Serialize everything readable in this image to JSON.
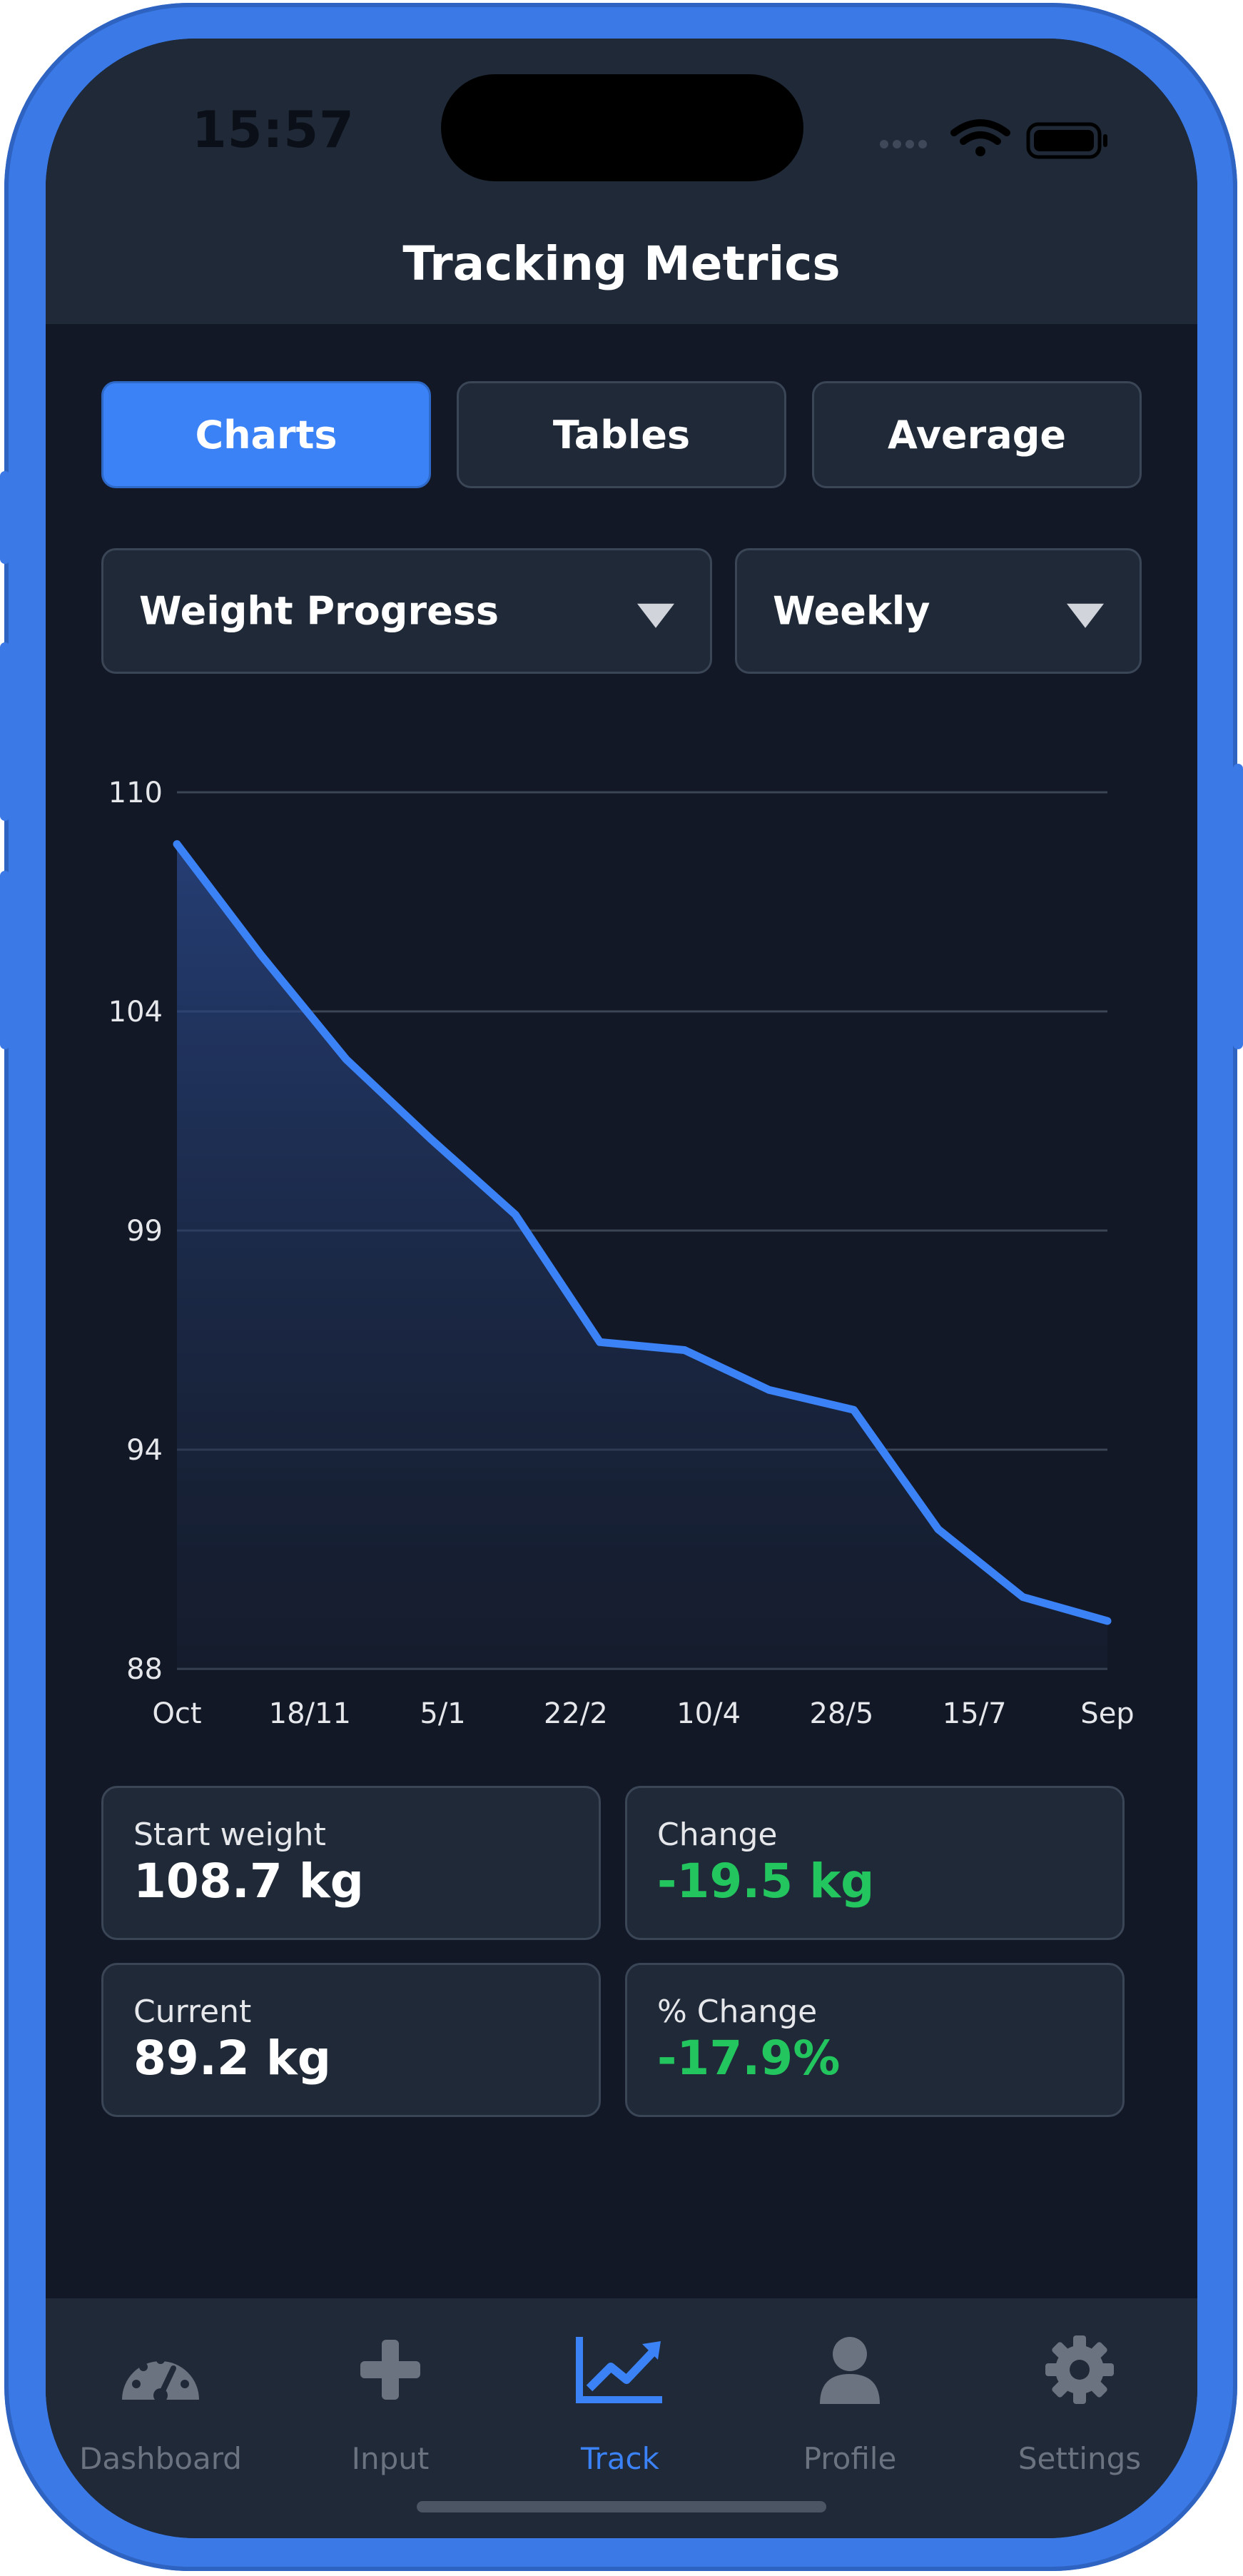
{
  "status_bar": {
    "time": "15:57"
  },
  "header": {
    "title": "Tracking Metrics"
  },
  "tabs": [
    {
      "label": "Charts",
      "active": true
    },
    {
      "label": "Tables",
      "active": false
    },
    {
      "label": "Average",
      "active": false
    }
  ],
  "filters": {
    "metric": {
      "selected": "Weight Progress"
    },
    "period": {
      "selected": "Weekly"
    }
  },
  "chart_data": {
    "type": "area",
    "title": "",
    "xlabel": "",
    "ylabel": "",
    "ylim": [
      88,
      110
    ],
    "y_ticks": [
      "110",
      "104",
      "99",
      "94",
      "88"
    ],
    "x_ticks": [
      "Oct",
      "18/11",
      "5/1",
      "22/2",
      "10/4",
      "28/5",
      "15/7",
      "Sep"
    ],
    "grid": true,
    "series": [
      {
        "values": [
          108.7,
          105.9,
          103.3,
          101.3,
          99.4,
          96.2,
          96.0,
          95.0,
          94.5,
          91.5,
          89.8,
          89.2
        ]
      }
    ],
    "color": "#3b82f6"
  },
  "stats": [
    {
      "label": "Start weight",
      "value": "108.7 kg",
      "highlight": false
    },
    {
      "label": "Change",
      "value": "-19.5 kg",
      "highlight": true
    },
    {
      "label": "Current",
      "value": "89.2 kg",
      "highlight": false
    },
    {
      "label": "% Change",
      "value": "-17.9%",
      "highlight": true
    }
  ],
  "tab_bar": [
    {
      "label": "Dashboard",
      "icon": "dashboard-gauge-icon",
      "active": false
    },
    {
      "label": "Input",
      "icon": "plus-icon",
      "active": false
    },
    {
      "label": "Track",
      "icon": "chart-line-icon",
      "active": true
    },
    {
      "label": "Profile",
      "icon": "user-icon",
      "active": false
    },
    {
      "label": "Settings",
      "icon": "gear-icon",
      "active": false
    }
  ],
  "colors": {
    "accent": "#3b82f6",
    "positive": "#22c55e",
    "background": "#121826",
    "surface": "#1f2937",
    "frame": "#3b79e6"
  }
}
